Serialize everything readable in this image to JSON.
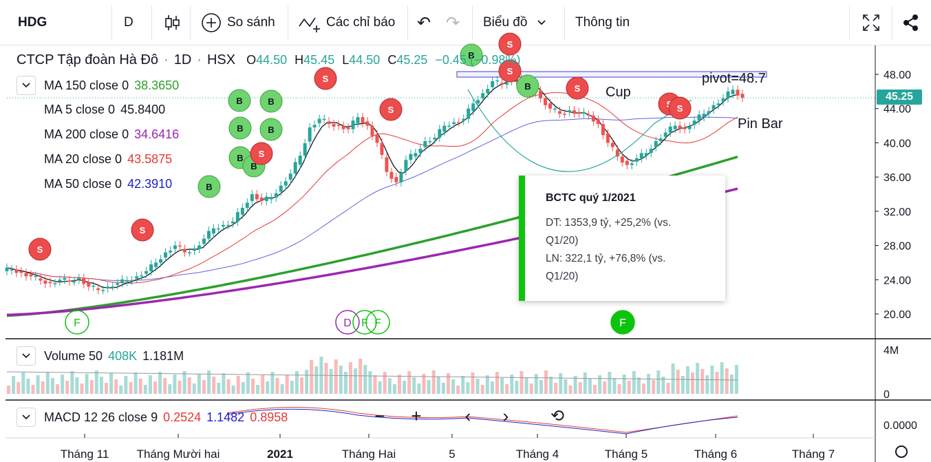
{
  "toolbar": {
    "symbol": "HDG",
    "interval": "D",
    "compare_label": "So sánh",
    "indicators_label": "Các chỉ báo",
    "chart_type_label": "Biểu đồ",
    "info_label": "Thông tin",
    "icons": [
      "candles-icon",
      "plus-circle-icon",
      "indicator-icon",
      "undo-icon",
      "redo-icon",
      "chevron-down-icon",
      "fullscreen-icon",
      "share-icon"
    ]
  },
  "header": {
    "name": "CTCP Tập đoàn Hà Đô",
    "interval": "1D",
    "exchange": "HSX",
    "o_label": "O",
    "o_value": "44.50",
    "h_label": "H",
    "h_value": "45.45",
    "l_label": "L",
    "l_value": "44.50",
    "c_label": "C",
    "c_value": "45.25",
    "change": "−0.45 (−0.98%)"
  },
  "legends": [
    {
      "label": "MA 150 close 0",
      "value": "38.3650",
      "color": "#2ca02c"
    },
    {
      "label": "MA 5 close 0",
      "value": "45.8400",
      "color": "#131722"
    },
    {
      "label": "MA 200 close 0",
      "value": "34.6416",
      "color": "#9c27b0"
    },
    {
      "label": "MA 20 close 0",
      "value": "43.5875",
      "color": "#e53935"
    },
    {
      "label": "MA 50 close 0",
      "value": "42.3910",
      "color": "#1e22c8"
    }
  ],
  "volume": {
    "label": "Volume 50",
    "value1": "408K",
    "value2": "1.181M",
    "value1_color": "#26a69a"
  },
  "macd": {
    "label": "MACD 12 26 close 9",
    "v1": "0.2524",
    "v2": "1.1482",
    "v3": "0.8958",
    "v1_color": "#e53935",
    "v2_color": "#1e22c8",
    "v3_color": "#e53935"
  },
  "price_axis": [
    "48.00",
    "44.00",
    "40.00",
    "36.00",
    "32.00",
    "28.00",
    "24.00",
    "20.00"
  ],
  "volume_axis": [
    "4M",
    "0"
  ],
  "macd_axis": [
    "0.0000"
  ],
  "time_axis": [
    "Tháng 11",
    "Tháng Mười hai",
    "2021",
    "Tháng Hai",
    "5",
    "Tháng 4",
    "Tháng 5",
    "Tháng 6",
    "Tháng 7"
  ],
  "last_price": "45.25",
  "annotations": {
    "pivot": "pivot=48.7",
    "cup": "Cup",
    "pin_bar": "Pin Bar"
  },
  "signal_letters": {
    "buy": "B",
    "sell": "S",
    "fund": "F",
    "dividend": "D"
  },
  "popup": {
    "title": "BCTC quý 1/2021",
    "line1": "DT: 1353,9 tỷ, +25,2% (vs.",
    "line2": "Q1/20)",
    "line3": "LN: 322,1 tỷ, +76,8% (vs.",
    "line4": "Q1/20)",
    "accent": "#0ec30e"
  },
  "colors": {
    "up": "#26a69a",
    "down": "#ef5350",
    "buy": "#6fd46f",
    "sell": "#ec4c4c"
  },
  "chart_data": {
    "type": "candlestick",
    "x": [
      "Tháng 11",
      "Tháng Mười hai",
      "2021",
      "Tháng Hai",
      "5",
      "Tháng 4",
      "Tháng 5",
      "Tháng 6",
      "Tháng 7"
    ],
    "ylim": [
      18,
      50
    ],
    "close_path": [
      25.2,
      24.8,
      24.4,
      23.9,
      23.6,
      24.0,
      23.8,
      24.2,
      23.2,
      22.8,
      23.2,
      23.6,
      23.9,
      24.4,
      25.0,
      26.0,
      27.2,
      28.0,
      27.2,
      27.6,
      28.8,
      30.0,
      30.4,
      30.8,
      32.4,
      34.0,
      33.2,
      33.6,
      35.0,
      36.4,
      38.5,
      41.8,
      42.8,
      42.2,
      42.0,
      41.6,
      43.0,
      42.0,
      40.0,
      36.6,
      35.4,
      38.0,
      38.8,
      40.2,
      40.6,
      42.0,
      42.4,
      42.8,
      44.6,
      45.8,
      47.2,
      46.8,
      47.6,
      47.4,
      47.0,
      45.2,
      44.0,
      43.4,
      43.8,
      43.4,
      43.2,
      42.2,
      40.0,
      38.4,
      37.4,
      38.2,
      38.8,
      40.2,
      41.2,
      42.0,
      41.6,
      42.6,
      43.4,
      44.4,
      45.2,
      46.2,
      45.25
    ],
    "series": [
      {
        "name": "MA 150 close 0",
        "last": 38.365
      },
      {
        "name": "MA 5 close 0",
        "last": 45.84
      },
      {
        "name": "MA 200 close 0",
        "last": 34.6416
      },
      {
        "name": "MA 20 close 0",
        "last": 43.5875
      },
      {
        "name": "MA 50 close 0",
        "last": 42.391
      }
    ]
  }
}
